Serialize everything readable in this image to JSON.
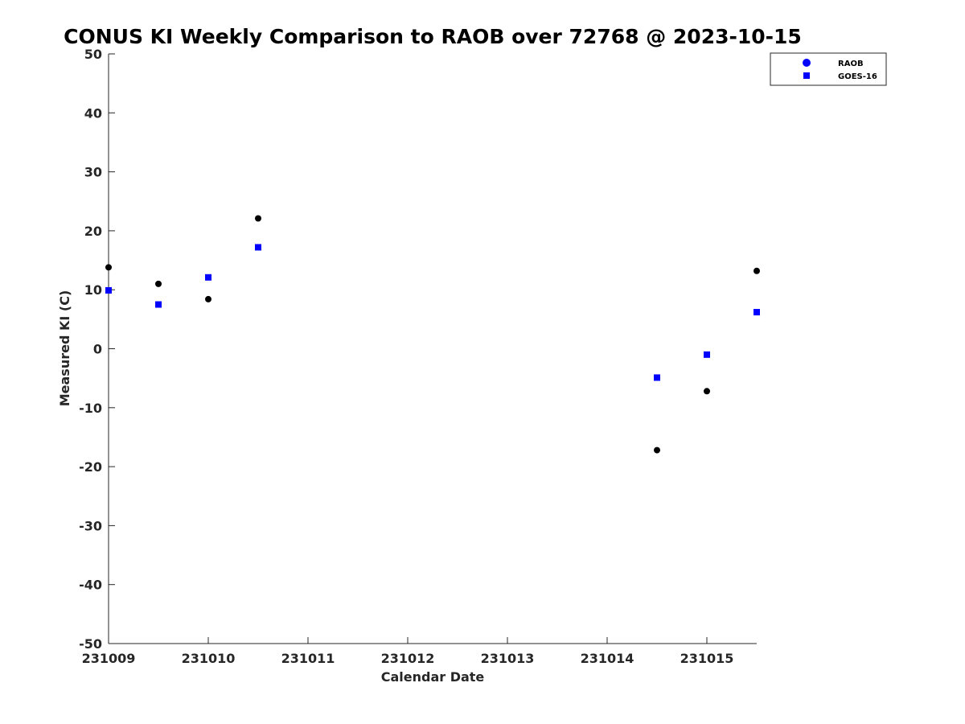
{
  "chart_data": {
    "type": "scatter",
    "title": "CONUS KI Weekly Comparison to RAOB over 72768 @ 2023-10-15",
    "xlabel": "Calendar Date",
    "ylabel": "Measured KI (C)",
    "x_ticks": [
      "231009",
      "231010",
      "231011",
      "231012",
      "231013",
      "231014",
      "231015"
    ],
    "xlim": [
      "231009",
      "231015.5"
    ],
    "ylim": [
      -50,
      50
    ],
    "y_ticks": [
      -50,
      -40,
      -30,
      -20,
      -10,
      0,
      10,
      20,
      30,
      40,
      50
    ],
    "grid": false,
    "legend_position": "top-right",
    "series": [
      {
        "name": "RAOB",
        "marker": "circle",
        "color": "#000000",
        "legend_color": "#0000ff",
        "points": [
          {
            "x": "231009 00Z",
            "y": 13.8
          },
          {
            "x": "231009 12Z",
            "y": 11.0
          },
          {
            "x": "231010 00Z",
            "y": 8.4
          },
          {
            "x": "231010 12Z",
            "y": 22.1
          },
          {
            "x": "231014 12Z",
            "y": -17.2
          },
          {
            "x": "231015 00Z",
            "y": -7.2
          },
          {
            "x": "231015 12Z",
            "y": 13.2
          }
        ]
      },
      {
        "name": "GOES-16",
        "marker": "square",
        "color": "#0000ff",
        "legend_color": "#0000ff",
        "points": [
          {
            "x": "231009 00Z",
            "y": 9.9
          },
          {
            "x": "231009 12Z",
            "y": 7.5
          },
          {
            "x": "231010 00Z",
            "y": 12.1
          },
          {
            "x": "231010 12Z",
            "y": 17.2
          },
          {
            "x": "231014 12Z",
            "y": -4.9
          },
          {
            "x": "231015 00Z",
            "y": -1.0
          },
          {
            "x": "231015 12Z",
            "y": 6.2
          }
        ]
      }
    ]
  }
}
